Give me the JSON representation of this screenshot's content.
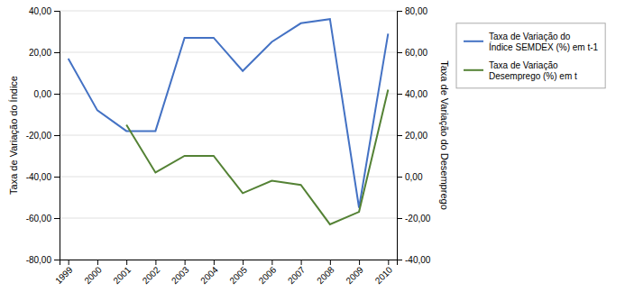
{
  "chart_data": {
    "type": "line",
    "x": [
      1999,
      2000,
      2001,
      2002,
      2003,
      2004,
      2005,
      2006,
      2007,
      2008,
      2009,
      2010
    ],
    "xlim": [
      1998.7,
      2010.3
    ],
    "xticks": [
      1999,
      2000,
      2001,
      2002,
      2003,
      2004,
      2005,
      2006,
      2007,
      2008,
      2009,
      2010
    ],
    "y_label": "Taxa de Variação do Índice",
    "y2_label": "Taxa de Variação do Desemprego",
    "ylim": [
      -80,
      40
    ],
    "yticks": [
      {
        "value": -80,
        "label": "-80,00"
      },
      {
        "value": -60,
        "label": "-60,00"
      },
      {
        "value": -40,
        "label": "-40,00"
      },
      {
        "value": -20,
        "label": "-20,00"
      },
      {
        "value": 0,
        "label": "0,00"
      },
      {
        "value": 20,
        "label": "20,00"
      },
      {
        "value": 40,
        "label": "40,00"
      }
    ],
    "y2lim": [
      -40,
      80
    ],
    "y2ticks": [
      {
        "value": -40,
        "label": "-40,00"
      },
      {
        "value": -20,
        "label": "-20,00"
      },
      {
        "value": 0,
        "label": "0,00"
      },
      {
        "value": 20,
        "label": "20,00"
      },
      {
        "value": 40,
        "label": "40,00"
      },
      {
        "value": 60,
        "label": "60,00"
      },
      {
        "value": 80,
        "label": "80,00"
      }
    ],
    "series": [
      {
        "name": "Taxa de Variação do\nÍndice SEMDEX (%) em t-1",
        "color": "#4472C4",
        "axis": "y",
        "values": [
          17,
          -8,
          -18,
          -18,
          27,
          27,
          11,
          25,
          34,
          36,
          -55,
          29
        ]
      },
      {
        "name": "Taxa de Variação\nDesemprego (%) em t",
        "color": "#548235",
        "axis": "y2",
        "values": [
          null,
          null,
          25,
          2,
          10,
          10,
          -8,
          -2,
          -4,
          -23,
          -17,
          42
        ]
      }
    ],
    "grid": true,
    "legend": "right"
  }
}
